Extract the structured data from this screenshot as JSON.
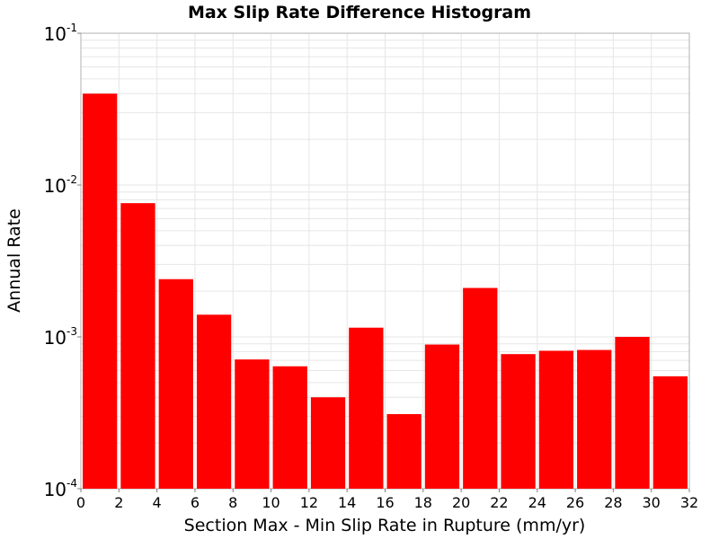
{
  "chart_data": {
    "type": "bar",
    "title": "Max Slip Rate Difference Histogram",
    "xlabel": "Section Max - Min Slip Rate in Rupture (mm/yr)",
    "ylabel": "Annual Rate",
    "xlim": [
      0,
      32
    ],
    "ylim": [
      0.0001,
      0.1
    ],
    "yscale": "log",
    "bin_width": 2,
    "bin_centers": [
      1,
      3,
      5,
      7,
      9,
      11,
      13,
      15,
      17,
      19,
      21,
      23,
      25,
      27,
      29,
      31
    ],
    "values": [
      0.04,
      0.0076,
      0.0024,
      0.0014,
      0.00071,
      0.00064,
      0.0004,
      0.00115,
      0.00031,
      0.00089,
      0.0021,
      0.00077,
      0.00081,
      0.00082,
      0.001,
      0.00055
    ],
    "x_ticks": [
      "0",
      "2",
      "4",
      "6",
      "8",
      "10",
      "12",
      "14",
      "16",
      "18",
      "20",
      "22",
      "24",
      "26",
      "28",
      "30",
      "32"
    ],
    "y_ticks": [
      {
        "base": "10",
        "exp": "-1"
      },
      {
        "base": "10",
        "exp": "-2"
      },
      {
        "base": "10",
        "exp": "-3"
      },
      {
        "base": "10",
        "exp": "-4"
      }
    ],
    "grid": true,
    "bar_color": "#ff0000",
    "grid_color": "#e6e6e6"
  }
}
